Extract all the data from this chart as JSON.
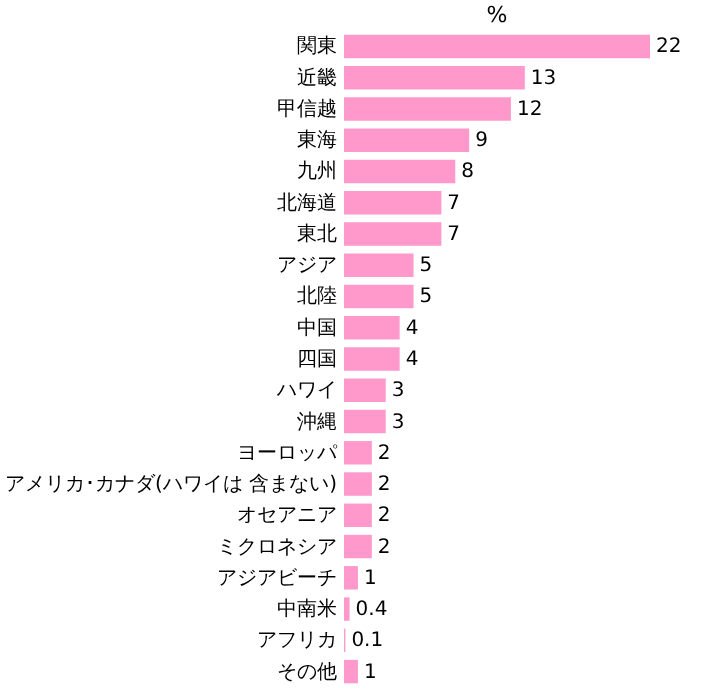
{
  "chart_data": {
    "type": "bar",
    "orientation": "horizontal",
    "title": "%",
    "categories": [
      "関東",
      "近畿",
      "甲信越",
      "東海",
      "九州",
      "北海道",
      "東北",
      "アジア",
      "北陸",
      "中国",
      "四国",
      "ハワイ",
      "沖縄",
      "ヨーロッパ",
      "アメリカ･カナダ(ハワイは 含まない)",
      "オセアニア",
      "ミクロネシア",
      "アジアビーチ",
      "中南米",
      "アフリカ",
      "その他"
    ],
    "values": [
      22,
      13,
      12,
      9,
      8,
      7,
      7,
      5,
      5,
      4,
      4,
      3,
      3,
      2,
      2,
      2,
      2,
      1,
      0.4,
      0.1,
      1
    ],
    "color": "#ff99cc",
    "data_labels": true,
    "grid": false
  }
}
